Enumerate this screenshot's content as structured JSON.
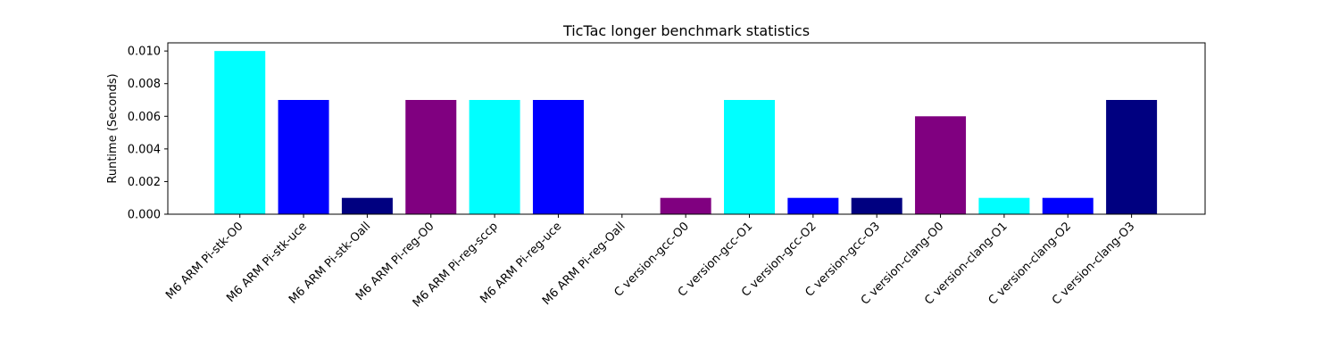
{
  "chart_data": {
    "type": "bar",
    "title": "TicTac longer benchmark statistics",
    "xlabel": "",
    "ylabel": "Runtime (Seconds)",
    "ylim": [
      0,
      0.0105
    ],
    "yticks": [
      0.0,
      0.002,
      0.004,
      0.006,
      0.008,
      0.01
    ],
    "ytick_labels": [
      "0.000",
      "0.002",
      "0.004",
      "0.006",
      "0.008",
      "0.010"
    ],
    "grid": false,
    "categories": [
      "M6 ARM Pi-stk-O0",
      "M6 ARM Pi-stk-uce",
      "M6 ARM Pi-stk-Oall",
      "M6 ARM Pi-reg-O0",
      "M6 ARM Pi-reg-sccp",
      "M6 ARM Pi-reg-uce",
      "M6 ARM Pi-reg-Oall",
      "C version-gcc-O0",
      "C version-gcc-O1",
      "C version-gcc-O2",
      "C version-gcc-O3",
      "C version-clang-O0",
      "C version-clang-O1",
      "C version-clang-O2",
      "C version-clang-O3"
    ],
    "values": [
      0.01,
      0.007,
      0.001,
      0.007,
      0.007,
      0.007,
      0.0,
      0.001,
      0.007,
      0.001,
      0.001,
      0.006,
      0.001,
      0.001,
      0.007
    ],
    "colors": [
      "#00ffff",
      "#0000ff",
      "#000080",
      "#800080",
      "#00ffff",
      "#0000ff",
      "#000080",
      "#800080",
      "#00ffff",
      "#0000ff",
      "#000080",
      "#800080",
      "#00ffff",
      "#0000ff",
      "#000080"
    ]
  }
}
